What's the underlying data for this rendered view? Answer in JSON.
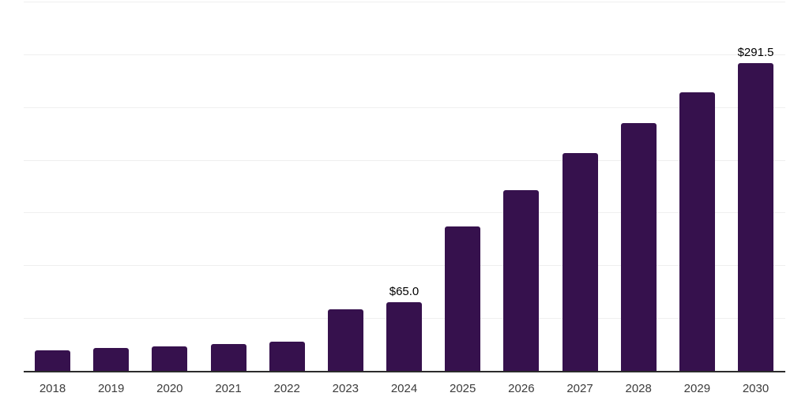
{
  "chart_data": {
    "type": "bar",
    "title": "",
    "xlabel": "",
    "ylabel": "",
    "categories": [
      "2018",
      "2019",
      "2020",
      "2021",
      "2022",
      "2023",
      "2024",
      "2025",
      "2026",
      "2027",
      "2028",
      "2029",
      "2030"
    ],
    "values": [
      19.8,
      22.0,
      23.5,
      25.2,
      27.7,
      58.7,
      65.0,
      137.0,
      171.5,
      206.5,
      235.0,
      264.0,
      291.5
    ],
    "data_labels": [
      {
        "category": "2024",
        "text": "$65.0"
      },
      {
        "category": "2030",
        "text": "$291.5"
      }
    ],
    "ylim": [
      0,
      350
    ],
    "gridline_step": 50,
    "grid": "horizontal",
    "legend": false,
    "y_axis_labels_visible": false,
    "colors": {
      "bar": "#36114D",
      "axis_line": "#2b2b2b",
      "gridline": "#efefef",
      "tick_label": "#3c3c3c",
      "data_label": "#000000",
      "background": "#ffffff"
    }
  }
}
